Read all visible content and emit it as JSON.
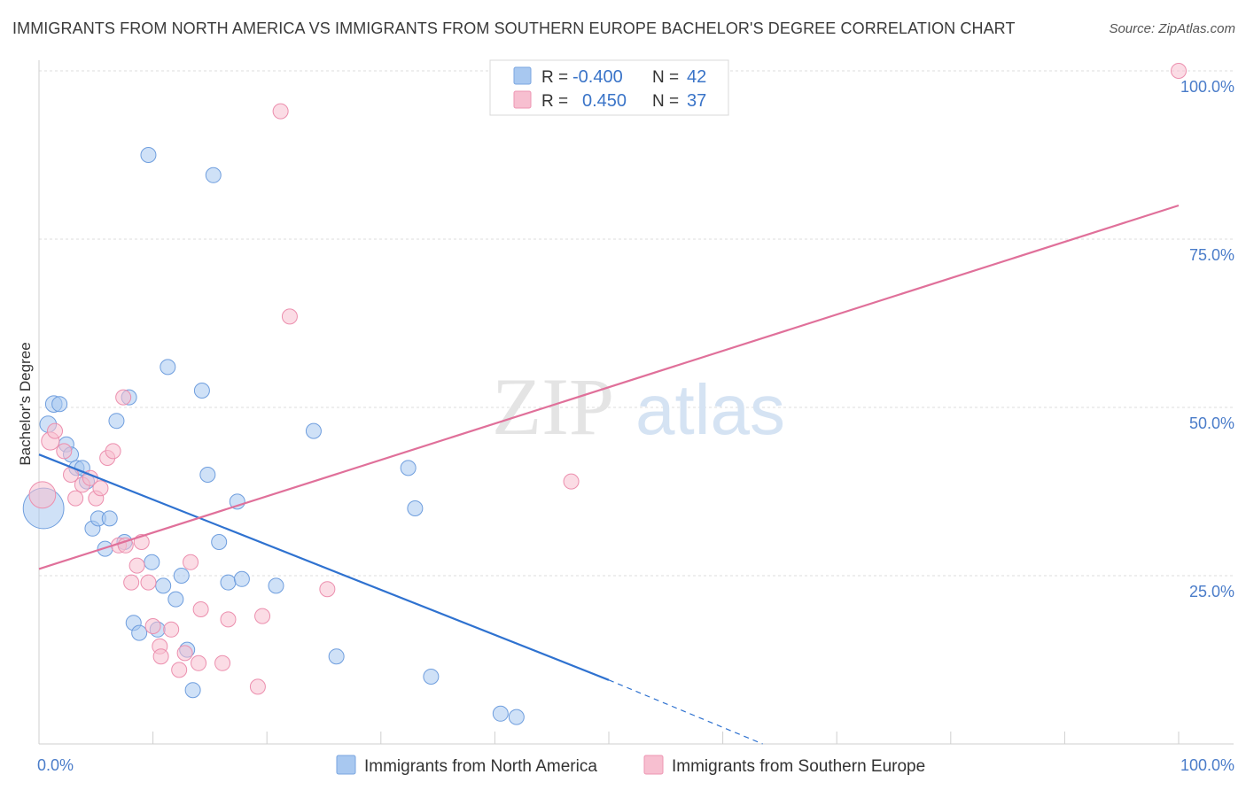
{
  "title": "IMMIGRANTS FROM NORTH AMERICA VS IMMIGRANTS FROM SOUTHERN EUROPE BACHELOR'S DEGREE CORRELATION CHART",
  "source": "Source: ZipAtlas.com",
  "watermark": {
    "zip": "ZIP",
    "atlas": "atlas"
  },
  "legend": {
    "rows": [
      {
        "r_label": "R =",
        "r_value": "-0.400",
        "n_label": "N =",
        "n_value": "42",
        "color": "#a8c8f0",
        "stroke": "#7aa6e0"
      },
      {
        "r_label": "R =",
        "r_value": "0.450",
        "n_label": "N =",
        "n_value": "37",
        "color": "#f7bfd0",
        "stroke": "#ee94b2"
      }
    ]
  },
  "bottom_legend": [
    "Immigrants from North America",
    "Immigrants from Southern Europe"
  ],
  "chart_data": {
    "type": "scatter",
    "title": "IMMIGRANTS FROM NORTH AMERICA VS IMMIGRANTS FROM SOUTHERN EUROPE BACHELOR'S DEGREE CORRELATION CHART",
    "xlabel": "",
    "ylabel": "Bachelor's Degree",
    "xlim": [
      0,
      100
    ],
    "ylim": [
      0,
      100
    ],
    "x_tick_labels": [
      {
        "value": 0,
        "label": "0.0%"
      },
      {
        "value": 100,
        "label": "100.0%"
      }
    ],
    "y_tick_labels": [
      {
        "value": 25,
        "label": "25.0%"
      },
      {
        "value": 50,
        "label": "50.0%"
      },
      {
        "value": 75,
        "label": "75.0%"
      },
      {
        "value": 100,
        "label": "100.0%"
      }
    ],
    "grid": true,
    "legend_position": "top-center",
    "series": [
      {
        "name": "Immigrants from North America",
        "color": "#a8c8f0",
        "stroke": "#6f9ede",
        "line_color": "#2f72d0",
        "trend": {
          "x0": 0,
          "y0": 43,
          "x1": 50,
          "y1": 9.5,
          "dash_to_x": 63.5,
          "dash_to_y": 0
        },
        "points": [
          [
            0.4,
            35,
            28
          ],
          [
            0.8,
            47.5,
            11
          ],
          [
            1.3,
            50.5,
            11
          ],
          [
            1.8,
            50.5,
            10
          ],
          [
            2.4,
            44.5,
            10
          ],
          [
            2.8,
            43,
            10
          ],
          [
            3.3,
            41,
            10
          ],
          [
            3.8,
            41,
            10
          ],
          [
            4.2,
            39,
            10
          ],
          [
            4.7,
            32,
            10
          ],
          [
            5.2,
            33.5,
            10
          ],
          [
            6.2,
            33.5,
            10
          ],
          [
            5.8,
            29,
            10
          ],
          [
            6.8,
            48,
            10
          ],
          [
            7.5,
            30,
            10
          ],
          [
            7.9,
            51.5,
            10
          ],
          [
            8.3,
            18,
            10
          ],
          [
            8.8,
            16.5,
            10
          ],
          [
            9.6,
            87.5,
            10
          ],
          [
            9.9,
            27,
            10
          ],
          [
            10.4,
            17,
            10
          ],
          [
            10.9,
            23.5,
            10
          ],
          [
            11.3,
            56,
            10
          ],
          [
            12.0,
            21.5,
            10
          ],
          [
            12.5,
            25,
            10
          ],
          [
            13.0,
            14,
            10
          ],
          [
            13.5,
            8,
            10
          ],
          [
            14.3,
            52.5,
            10
          ],
          [
            14.8,
            40,
            10
          ],
          [
            15.3,
            84.5,
            10
          ],
          [
            15.8,
            30,
            10
          ],
          [
            16.6,
            24,
            10
          ],
          [
            17.4,
            36,
            10
          ],
          [
            17.8,
            24.5,
            10
          ],
          [
            20.8,
            23.5,
            10
          ],
          [
            24.1,
            46.5,
            10
          ],
          [
            26.1,
            13,
            10
          ],
          [
            32.4,
            41,
            10
          ],
          [
            33.0,
            35,
            10
          ],
          [
            34.4,
            10,
            10
          ],
          [
            40.5,
            4.5,
            10
          ],
          [
            41.9,
            4,
            10
          ]
        ]
      },
      {
        "name": "Immigrants from Southern Europe",
        "color": "#f7bfd0",
        "stroke": "#ec8fae",
        "line_color": "#e0709a",
        "trend": {
          "x0": 0,
          "y0": 26,
          "x1": 100,
          "y1": 80
        },
        "points": [
          [
            0.3,
            37,
            18
          ],
          [
            1.0,
            45,
            12
          ],
          [
            1.4,
            46.5,
            10
          ],
          [
            2.2,
            43.5,
            10
          ],
          [
            2.8,
            40,
            10
          ],
          [
            3.2,
            36.5,
            10
          ],
          [
            3.8,
            38.5,
            10
          ],
          [
            4.5,
            39.5,
            10
          ],
          [
            5.0,
            36.5,
            10
          ],
          [
            5.4,
            38,
            10
          ],
          [
            6.0,
            42.5,
            10
          ],
          [
            6.5,
            43.5,
            10
          ],
          [
            7.0,
            29.5,
            10
          ],
          [
            7.4,
            51.5,
            10
          ],
          [
            7.6,
            29.5,
            10
          ],
          [
            8.1,
            24,
            10
          ],
          [
            8.6,
            26.5,
            10
          ],
          [
            9.0,
            30,
            10
          ],
          [
            9.6,
            24,
            10
          ],
          [
            10.0,
            17.5,
            10
          ],
          [
            10.6,
            14.5,
            10
          ],
          [
            10.7,
            13,
            10
          ],
          [
            11.6,
            17,
            10
          ],
          [
            12.3,
            11,
            10
          ],
          [
            12.8,
            13.5,
            10
          ],
          [
            13.3,
            27,
            10
          ],
          [
            14.0,
            12,
            10
          ],
          [
            14.2,
            20,
            10
          ],
          [
            16.1,
            12,
            10
          ],
          [
            16.6,
            18.5,
            10
          ],
          [
            19.2,
            8.5,
            10
          ],
          [
            19.6,
            19,
            10
          ],
          [
            21.2,
            94,
            10
          ],
          [
            22.0,
            63.5,
            10
          ],
          [
            25.3,
            23,
            10
          ],
          [
            46.7,
            39,
            10
          ],
          [
            100,
            100,
            10
          ]
        ]
      }
    ]
  }
}
